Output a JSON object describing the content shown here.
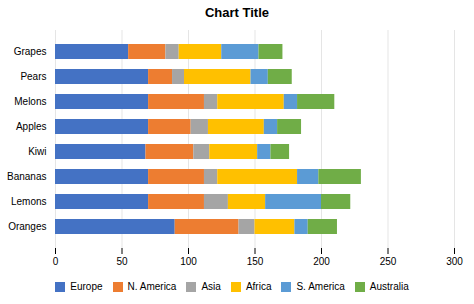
{
  "chart_data": {
    "type": "bar",
    "title": "Chart Title",
    "orientation": "horizontal",
    "stacked": true,
    "categories": [
      "Grapes",
      "Pears",
      "Melons",
      "Apples",
      "Kiwi",
      "Bananas",
      "Lemons",
      "Oranges"
    ],
    "series": [
      {
        "name": "Europe",
        "color": "#4472C4",
        "values": [
          55,
          70,
          70,
          70,
          68,
          70,
          70,
          90
        ]
      },
      {
        "name": "N. America",
        "color": "#ED7D31",
        "values": [
          28,
          18,
          42,
          32,
          36,
          42,
          42,
          48
        ]
      },
      {
        "name": "Asia",
        "color": "#A5A5A5",
        "values": [
          10,
          9,
          10,
          13,
          12,
          10,
          18,
          12
        ]
      },
      {
        "name": "Africa",
        "color": "#FFC000",
        "values": [
          32,
          50,
          50,
          42,
          36,
          60,
          28,
          30
        ]
      },
      {
        "name": "S. America",
        "color": "#5B9BD5",
        "values": [
          28,
          13,
          10,
          10,
          10,
          16,
          42,
          10
        ]
      },
      {
        "name": "Australia",
        "color": "#70AD47",
        "values": [
          18,
          18,
          28,
          18,
          14,
          32,
          22,
          22
        ]
      }
    ],
    "xlim": [
      0,
      300
    ],
    "xticks": [
      0,
      50,
      100,
      150,
      200,
      250,
      300
    ],
    "grid": true,
    "legend": "bottom"
  }
}
